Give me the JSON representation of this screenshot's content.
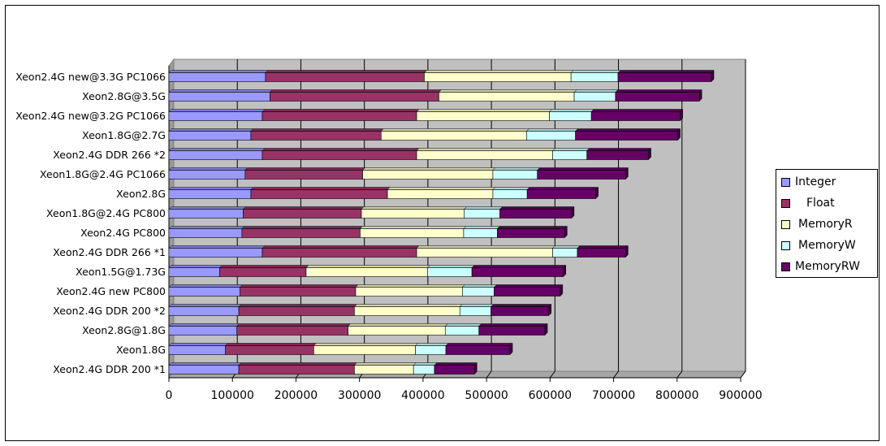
{
  "chart_data": {
    "type": "bar",
    "orientation": "horizontal",
    "stacked": true,
    "title": "",
    "xlabel": "",
    "ylabel": "",
    "xlim": [
      0,
      900000
    ],
    "x_ticks": [
      "0",
      "100000",
      "200000",
      "300000",
      "400000",
      "500000",
      "600000",
      "700000",
      "800000",
      "900000"
    ],
    "grid": true,
    "legend_position": "right",
    "categories": [
      "Xeon2.4G new@3.3G  PC1066",
      "Xeon2.8G@3.5G",
      "Xeon2.4G new@3.2G  PC1066",
      "Xeon1.8G@2.7G",
      "Xeon2.4G DDR 266 *2",
      "Xeon1.8G@2.4G PC1066",
      "Xeon2.8G",
      "Xeon1.8G@2.4G PC800",
      "Xeon2.4G PC800",
      "Xeon2.4G DDR 266 *1",
      "Xeon1.5G@1.73G",
      "Xeon2.4G new PC800",
      "Xeon2.4G DDR 200 *2",
      "Xeon2.8G@1.8G",
      "Xeon1.8G",
      "Xeon2.4G DDR 200 *1"
    ],
    "series": [
      {
        "name": "Integer",
        "color": "#9999ff",
        "values": [
          152000,
          159000,
          147000,
          129000,
          147000,
          120000,
          129000,
          117000,
          115000,
          147000,
          80000,
          112000,
          110000,
          107000,
          89000,
          110000
        ]
      },
      {
        "name": "Float",
        "color": "#993366",
        "values": [
          250000,
          266000,
          243000,
          205000,
          243000,
          185000,
          215000,
          186000,
          186000,
          243000,
          136000,
          182000,
          182000,
          175000,
          139000,
          182000
        ]
      },
      {
        "name": "MemoryR",
        "color": "#ffffcc",
        "values": [
          231000,
          213000,
          209000,
          229000,
          214000,
          205000,
          166000,
          162000,
          163000,
          214000,
          191000,
          168000,
          166000,
          153000,
          160000,
          93000
        ]
      },
      {
        "name": "MemoryW",
        "color": "#ccffff",
        "values": [
          74000,
          65000,
          66000,
          77000,
          54000,
          70000,
          54000,
          56000,
          53000,
          39000,
          70000,
          50000,
          49000,
          53000,
          48000,
          33000
        ]
      },
      {
        "name": "MemoryRW",
        "color": "#660066",
        "values": [
          147000,
          132000,
          140000,
          161000,
          97000,
          139000,
          108000,
          113000,
          106000,
          76000,
          144000,
          104000,
          91000,
          104000,
          101000,
          63000
        ]
      }
    ]
  }
}
